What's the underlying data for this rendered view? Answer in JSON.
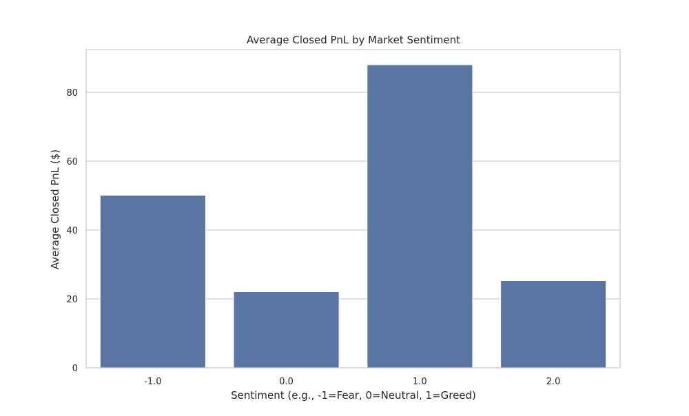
{
  "chart_data": {
    "type": "bar",
    "title": "Average Closed PnL by Market Sentiment",
    "xlabel": "Sentiment (e.g., -1=Fear, 0=Neutral, 1=Greed)",
    "ylabel": "Average Closed PnL ($)",
    "categories": [
      "-1.0",
      "0.0",
      "1.0",
      "2.0"
    ],
    "values": [
      50.1,
      22.1,
      88.0,
      25.3
    ],
    "ylim": [
      0,
      92.4
    ],
    "yticks": [
      0,
      20,
      40,
      60,
      80
    ],
    "ytick_labels": [
      "0",
      "20",
      "40",
      "60",
      "80"
    ],
    "grid": true,
    "bar_color": "#5975a4",
    "grid_color": "#cccccc",
    "spine_color": "#cccccc"
  }
}
